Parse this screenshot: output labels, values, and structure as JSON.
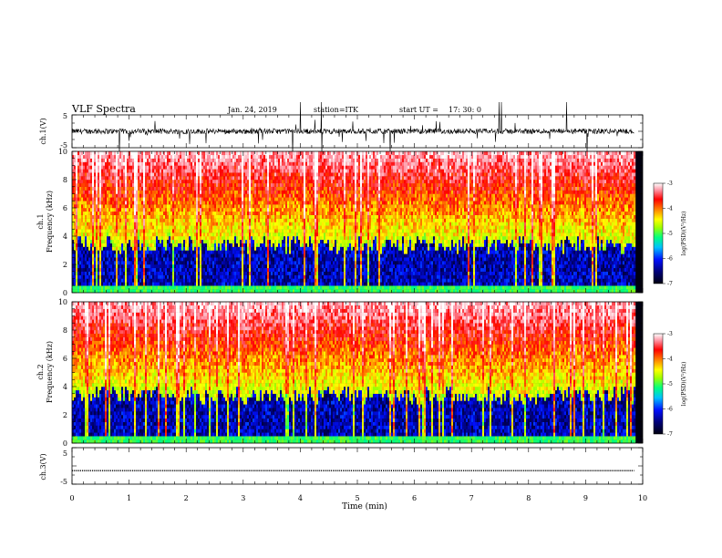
{
  "header": {
    "title": "VLF Spectra",
    "date": "Jan. 24, 2019",
    "station": "station=ITK",
    "start": "start UT =",
    "start_time": "17: 30: 0"
  },
  "chart_data": [
    {
      "type": "line",
      "panel": "ch1-waveform",
      "ylabel": "ch.1(V)",
      "ylim": [
        -5,
        5
      ],
      "y_ticks": [
        "5",
        "-5"
      ],
      "xlim": [
        0,
        9.85
      ]
    },
    {
      "type": "heatmap",
      "panel": "ch1-spectrogram",
      "ylabel_top": "ch.1",
      "ylabel": "Frequency (kHz)",
      "ylim": [
        0,
        10
      ],
      "y_ticks": [
        "0",
        "2",
        "4",
        "6",
        "8",
        "10"
      ],
      "colorbar": {
        "label": "log(PSD)(V²/Hz)",
        "range": [
          -7,
          -3
        ],
        "ticks": [
          "-3",
          "-4",
          "-5",
          "-6",
          "-7"
        ]
      }
    },
    {
      "type": "heatmap",
      "panel": "ch2-spectrogram",
      "ylabel_top": "ch.2",
      "ylabel": "Frequency (kHz)",
      "ylim": [
        0,
        10
      ],
      "y_ticks": [
        "0",
        "2",
        "4",
        "6",
        "8",
        "10"
      ],
      "colorbar": {
        "label": "log(PSD)(V²/Hz)",
        "range": [
          -7,
          -3
        ],
        "ticks": [
          "-3",
          "-4",
          "-5",
          "-6",
          "-7"
        ]
      }
    },
    {
      "type": "line",
      "panel": "ch3-waveform",
      "ylabel": "ch.3(V)",
      "ylim": [
        -5,
        5
      ],
      "y_ticks": [
        "5",
        "-5"
      ],
      "constant_value": -1.3
    }
  ],
  "xaxis": {
    "label": "Time (min)",
    "range": [
      0,
      10
    ],
    "ticks": [
      "0",
      "1",
      "2",
      "3",
      "4",
      "5",
      "6",
      "7",
      "8",
      "9",
      "10"
    ]
  },
  "colors": {
    "colormap": [
      "#000010",
      "#00007a",
      "#0010ff",
      "#00c0ff",
      "#00ff80",
      "#a0ff00",
      "#ffff00",
      "#ff8000",
      "#ff0000",
      "#ff90a0",
      "#ffffff"
    ]
  }
}
